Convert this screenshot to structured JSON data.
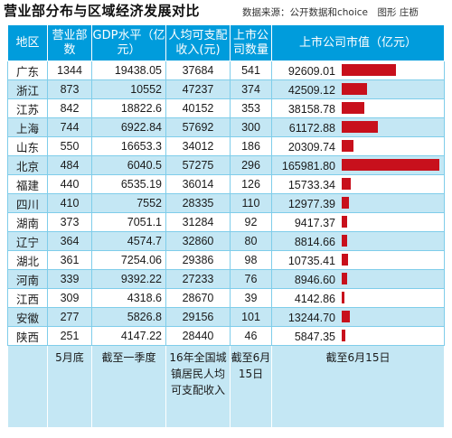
{
  "title": "营业部分布与区域经济发展对比",
  "source": "数据来源：公开数据和choice　图形 庄枥",
  "headers": [
    "地区",
    "营业部数",
    "GDP水平（亿元）",
    "人均可支配收入(元)",
    "上市公司数量",
    "上市公司市值（亿元）"
  ],
  "rows": [
    {
      "region": "广东",
      "branches": "1344",
      "gdp": "19438.05",
      "income": "37684",
      "companies": "541",
      "mcap": "92609.01"
    },
    {
      "region": "浙江",
      "branches": "873",
      "gdp": "10552",
      "income": "47237",
      "companies": "374",
      "mcap": "42509.12"
    },
    {
      "region": "江苏",
      "branches": "842",
      "gdp": "18822.6",
      "income": "40152",
      "companies": "353",
      "mcap": "38158.78"
    },
    {
      "region": "上海",
      "branches": "744",
      "gdp": "6922.84",
      "income": "57692",
      "companies": "300",
      "mcap": "61172.88"
    },
    {
      "region": "山东",
      "branches": "550",
      "gdp": "16653.3",
      "income": "34012",
      "companies": "186",
      "mcap": "20309.74"
    },
    {
      "region": "北京",
      "branches": "484",
      "gdp": "6040.5",
      "income": "57275",
      "companies": "296",
      "mcap": "165981.80"
    },
    {
      "region": "福建",
      "branches": "440",
      "gdp": "6535.19",
      "income": "36014",
      "companies": "126",
      "mcap": "15733.34"
    },
    {
      "region": "四川",
      "branches": "410",
      "gdp": "7552",
      "income": "28335",
      "companies": "110",
      "mcap": "12977.39"
    },
    {
      "region": "湖南",
      "branches": "373",
      "gdp": "7051.1",
      "income": "31284",
      "companies": "92",
      "mcap": "9417.37"
    },
    {
      "region": "辽宁",
      "branches": "364",
      "gdp": "4574.7",
      "income": "32860",
      "companies": "80",
      "mcap": "8814.66"
    },
    {
      "region": "湖北",
      "branches": "361",
      "gdp": "7254.06",
      "income": "29386",
      "companies": "98",
      "mcap": "10735.41"
    },
    {
      "region": "河南",
      "branches": "339",
      "gdp": "9392.22",
      "income": "27233",
      "companies": "76",
      "mcap": "8946.60"
    },
    {
      "region": "江西",
      "branches": "309",
      "gdp": "4318.6",
      "income": "28670",
      "companies": "39",
      "mcap": "4142.86"
    },
    {
      "region": "安徽",
      "branches": "277",
      "gdp": "5826.8",
      "income": "29156",
      "companies": "101",
      "mcap": "13244.70"
    },
    {
      "region": "陕西",
      "branches": "251",
      "gdp": "4147.22",
      "income": "28440",
      "companies": "46",
      "mcap": "5847.35"
    }
  ],
  "notes": [
    "",
    "5月底",
    "截至一季度",
    "16年全国城镇居民人均可支配收入",
    "截至6月15日",
    "截至6月15日"
  ],
  "chart_data": {
    "type": "table",
    "columns": [
      "地区",
      "营业部数",
      "GDP水平（亿元）",
      "人均可支配收入(元)",
      "上市公司数量",
      "上市公司市值（亿元）"
    ],
    "bar_column": "上市公司市值（亿元）",
    "bar_max": 165981.8,
    "colors": {
      "header": "#009cdc",
      "bar": "#c8101c",
      "stripe": "#c4e7f4"
    }
  }
}
